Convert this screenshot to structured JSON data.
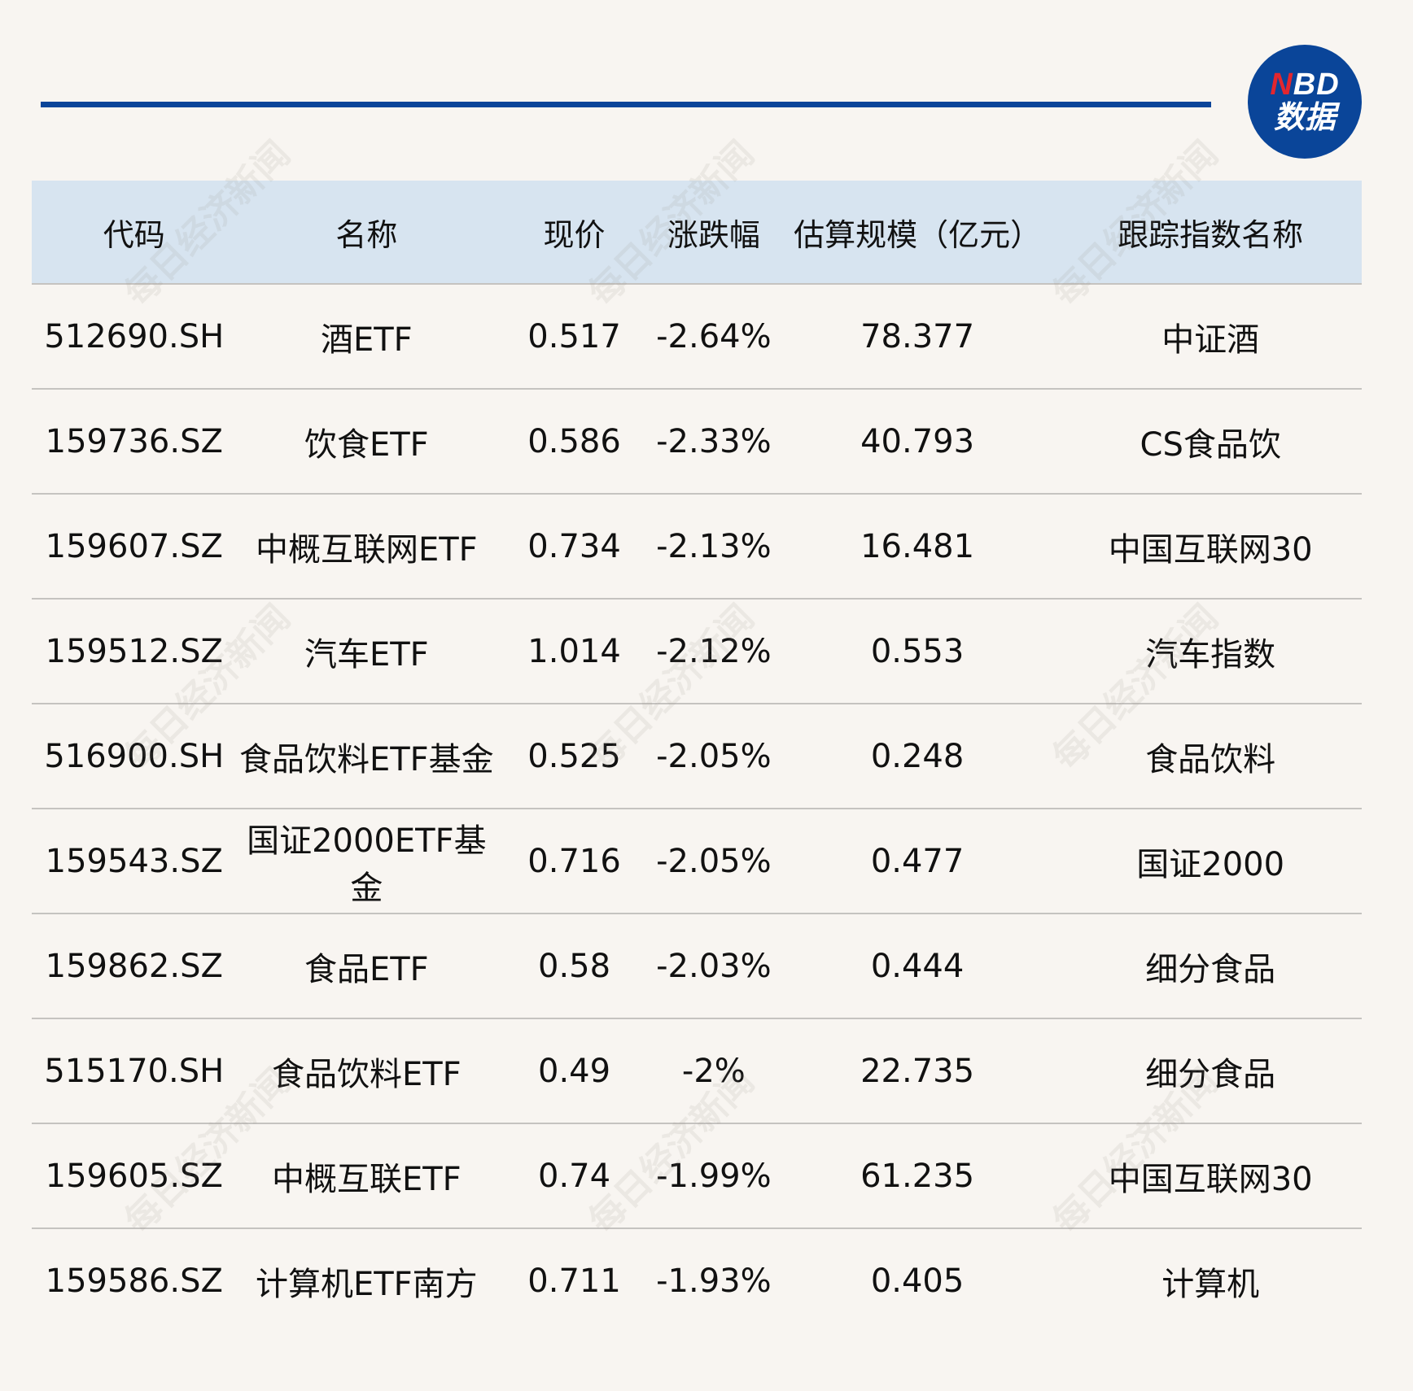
{
  "logo": {
    "line1_n": "N",
    "line1_rest": "BD",
    "line2": "数据"
  },
  "watermark": "每日经济新闻",
  "colors": {
    "accent": "#0a4599",
    "header_bg": "#d7e4f0",
    "logo_red": "#e3262e",
    "background": "#f8f5f1"
  },
  "table": {
    "headers": [
      "代码",
      "名称",
      "现价",
      "涨跌幅",
      "估算规模（亿元）",
      "跟踪指数名称"
    ],
    "rows": [
      [
        "512690.SH",
        "酒ETF",
        "0.517",
        "-2.64%",
        "78.377",
        "中证酒"
      ],
      [
        "159736.SZ",
        "饮食ETF",
        "0.586",
        "-2.33%",
        "40.793",
        "CS食品饮"
      ],
      [
        "159607.SZ",
        "中概互联网ETF",
        "0.734",
        "-2.13%",
        "16.481",
        "中国互联网30"
      ],
      [
        "159512.SZ",
        "汽车ETF",
        "1.014",
        "-2.12%",
        "0.553",
        "汽车指数"
      ],
      [
        "516900.SH",
        "食品饮料ETF基金",
        "0.525",
        "-2.05%",
        "0.248",
        "食品饮料"
      ],
      [
        "159543.SZ",
        "国证2000ETF基金",
        "0.716",
        "-2.05%",
        "0.477",
        "国证2000"
      ],
      [
        "159862.SZ",
        "食品ETF",
        "0.58",
        "-2.03%",
        "0.444",
        "细分食品"
      ],
      [
        "515170.SH",
        "食品饮料ETF",
        "0.49",
        "-2%",
        "22.735",
        "细分食品"
      ],
      [
        "159605.SZ",
        "中概互联ETF",
        "0.74",
        "-1.99%",
        "61.235",
        "中国互联网30"
      ],
      [
        "159586.SZ",
        "计算机ETF南方",
        "0.711",
        "-1.93%",
        "0.405",
        "计算机"
      ]
    ]
  }
}
